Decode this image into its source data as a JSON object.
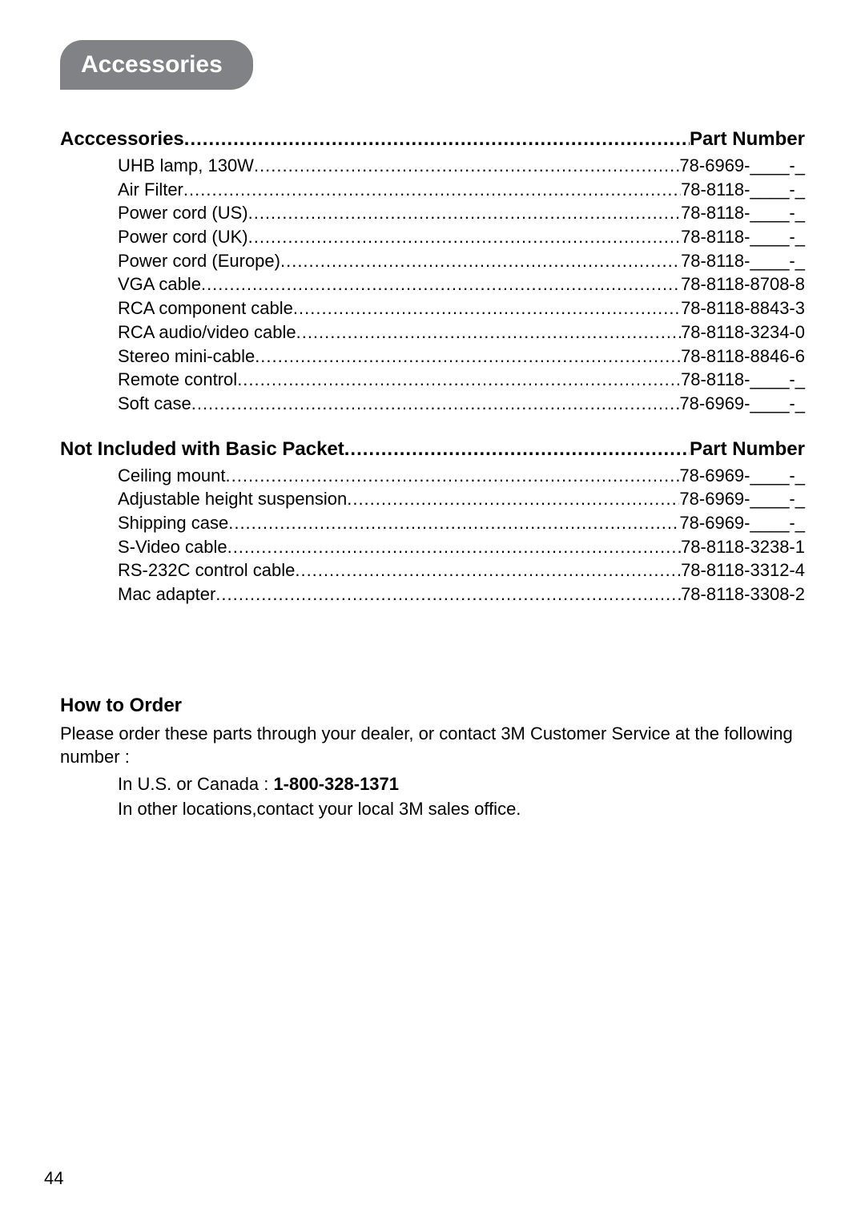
{
  "colors": {
    "background": "#ffffff",
    "text": "#000000",
    "pill_bg": "#808285",
    "pill_text": "#ffffff"
  },
  "typography": {
    "base_font": "Arial, Helvetica, sans-serif",
    "pill_fontsize_pt": 22,
    "header_fontsize_pt": 18,
    "body_fontsize_pt": 16
  },
  "page_number": "44",
  "section_title": "Accessories",
  "groups": [
    {
      "header_left": "Acccessories",
      "header_right": "Part Number",
      "items": [
        {
          "name": "UHB lamp, 130W",
          "part": "78-6969-____-_"
        },
        {
          "name": "Air Filter",
          "part": "78-8118-____-_"
        },
        {
          "name": "Power cord (US)",
          "part": "78-8118-____-_"
        },
        {
          "name": "Power cord (UK)",
          "part": "78-8118-____-_"
        },
        {
          "name": "Power cord (Europe)",
          "part": "78-8118-____-_"
        },
        {
          "name": "VGA cable",
          "part": "78-8118-8708-8"
        },
        {
          "name": "RCA component cable",
          "part": "78-8118-8843-3"
        },
        {
          "name": "RCA audio/video cable",
          "part": "78-8118-3234-0"
        },
        {
          "name": "Stereo mini-cable",
          "part": "78-8118-8846-6"
        },
        {
          "name": "Remote control",
          "part": "78-8118-____-_"
        },
        {
          "name": "Soft case",
          "part": "78-6969-____-_"
        }
      ]
    },
    {
      "header_left": "Not Included with Basic Packet",
      "header_right": "Part Number",
      "items": [
        {
          "name": "Ceiling mount",
          "part": "78-6969-____-_"
        },
        {
          "name": "Adjustable height suspension",
          "part": "78-6969-____-_"
        },
        {
          "name": "Shipping case",
          "part": "78-6969-____-_"
        },
        {
          "name": "S-Video cable",
          "part": "78-8118-3238-1"
        },
        {
          "name": "RS-232C control cable",
          "part": "78-8118-3312-4"
        },
        {
          "name": "Mac adapter",
          "part": "78-8118-3308-2"
        }
      ]
    }
  ],
  "how_to_order": {
    "title": "How to Order",
    "intro": "Please order these parts through your dealer, or contact 3M Customer Service at the following number :",
    "line1_prefix": "In U.S. or Canada : ",
    "line1_phone": "1-800-328-1371",
    "line2": "In other locations,contact your local 3M sales office."
  },
  "leader_dots": "................................................................................................................................................................................................................................................"
}
